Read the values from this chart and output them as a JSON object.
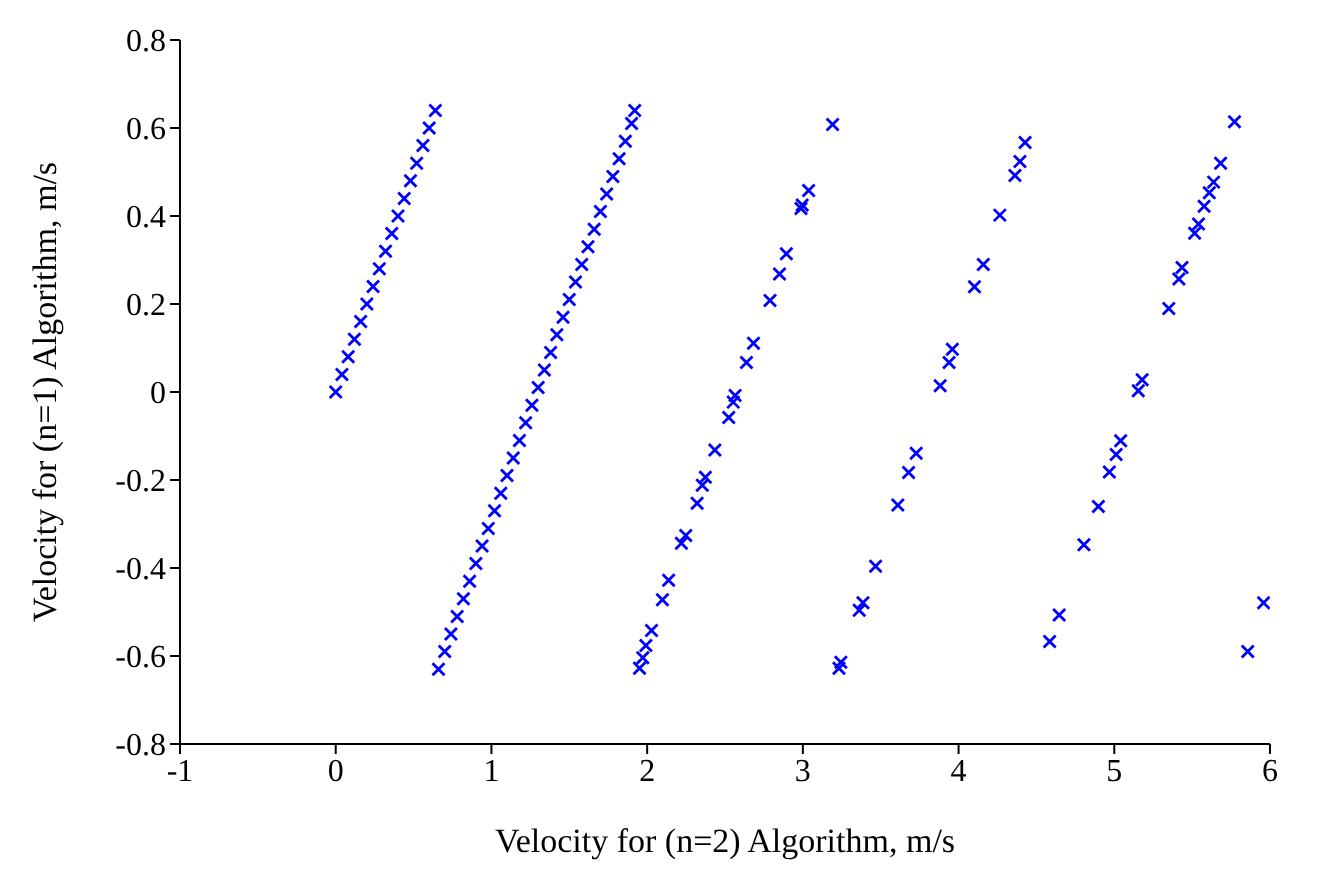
{
  "chart_data": {
    "type": "scatter",
    "xlabel": "Velocity for (n=2) Algorithm, m/s",
    "ylabel": "Velocity for (n=1) Algorithm, m/s",
    "xlim": [
      -1,
      6
    ],
    "xticks": [
      -1,
      0,
      1,
      2,
      3,
      4,
      5,
      6
    ],
    "ylim": [
      -0.8,
      0.8
    ],
    "yticks": [
      -0.8,
      -0.6,
      -0.4,
      -0.2,
      0,
      0.2,
      0.4,
      0.6,
      0.8
    ],
    "grid": false,
    "legend": false,
    "marker": "cross",
    "series": [
      {
        "color": "#0000ff",
        "x": [
          0,
          0.04,
          0.08,
          0.12,
          0.16,
          0.2,
          0.24,
          0.28,
          0.32,
          0.36,
          0.4,
          0.44,
          0.48,
          0.52,
          0.56,
          0.6,
          0.64,
          0.66,
          0.7,
          0.74,
          0.78,
          0.82,
          0.86,
          0.9,
          0.94,
          0.98,
          1.02,
          1.06,
          1.1,
          1.14,
          1.18,
          1.22,
          1.26,
          1.3,
          1.34,
          1.38,
          1.42,
          1.46,
          1.5,
          1.54,
          1.58,
          1.62,
          1.66,
          1.7,
          1.74,
          1.78,
          1.82,
          1.86,
          1.9,
          1.92,
          1.951,
          1.972,
          1.992,
          2.028,
          2.098,
          2.138,
          2.22,
          2.248,
          2.321,
          2.354,
          2.374,
          2.435,
          2.524,
          2.553,
          2.565,
          2.638,
          2.683,
          2.789,
          2.85,
          2.894,
          2.988,
          2.996,
          3.037,
          3.191,
          3.232,
          3.244,
          3.362,
          3.386,
          3.467,
          3.61,
          3.679,
          3.728,
          3.882,
          3.939,
          3.96,
          4.102,
          4.159,
          4.265,
          4.362,
          4.394,
          4.427,
          4.585,
          4.646,
          4.805,
          4.898,
          4.968,
          5.012,
          5.041,
          5.154,
          5.179,
          5.35,
          5.415,
          5.435,
          5.516,
          5.541,
          5.577,
          5.61,
          5.638,
          5.683,
          5.772,
          5.857,
          5.959
        ],
        "values": [
          0,
          0.04,
          0.08,
          0.12,
          0.16,
          0.2,
          0.24,
          0.28,
          0.32,
          0.36,
          0.4,
          0.44,
          0.48,
          0.52,
          0.56,
          0.6,
          0.64,
          -0.63,
          -0.59,
          -0.55,
          -0.51,
          -0.47,
          -0.43,
          -0.39,
          -0.35,
          -0.31,
          -0.27,
          -0.23,
          -0.19,
          -0.15,
          -0.11,
          -0.07,
          -0.03,
          0.01,
          0.05,
          0.09,
          0.13,
          0.17,
          0.21,
          0.25,
          0.29,
          0.33,
          0.37,
          0.41,
          0.45,
          0.49,
          0.53,
          0.57,
          0.61,
          0.64,
          -0.628,
          -0.604,
          -0.576,
          -0.542,
          -0.472,
          -0.428,
          -0.344,
          -0.326,
          -0.253,
          -0.212,
          -0.194,
          -0.132,
          -0.058,
          -0.023,
          -0.008,
          0.067,
          0.111,
          0.208,
          0.268,
          0.314,
          0.417,
          0.425,
          0.458,
          0.608,
          -0.628,
          -0.614,
          -0.496,
          -0.479,
          -0.396,
          -0.257,
          -0.183,
          -0.139,
          0.014,
          0.067,
          0.097,
          0.239,
          0.29,
          0.402,
          0.492,
          0.524,
          0.567,
          -0.567,
          -0.507,
          -0.347,
          -0.26,
          -0.182,
          -0.142,
          -0.111,
          0.003,
          0.028,
          0.19,
          0.257,
          0.283,
          0.361,
          0.382,
          0.422,
          0.453,
          0.477,
          0.52,
          0.614,
          -0.59,
          -0.479
        ]
      }
    ]
  }
}
